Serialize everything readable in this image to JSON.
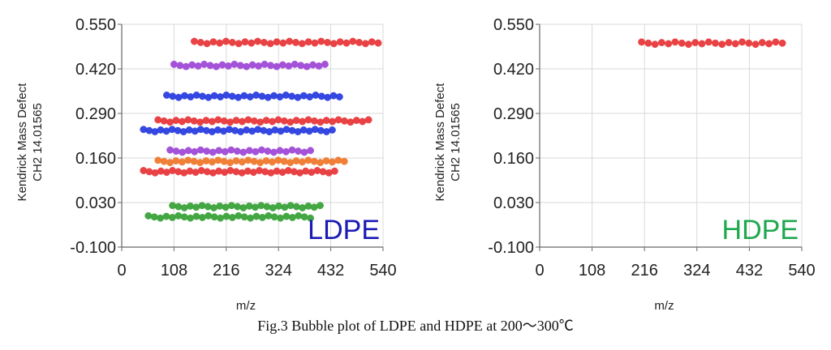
{
  "figure_caption": "Fig.3 Bubble plot of LDPE and HDPE at 200～300℃",
  "colors": {
    "red": "#e8383b",
    "purple": "#a04ad8",
    "blue": "#2b3fe0",
    "orange": "#f07a2e",
    "green": "#3aa33a",
    "ldpe_label": "#1a1ab5",
    "hdpe_label": "#1fa84f",
    "grid": "#d9d9d9",
    "axis": "#666666"
  },
  "chart_data": [
    {
      "type": "scatter",
      "title": "",
      "panel_label": "LDPE",
      "panel_label_color": "ldpe_label",
      "xlabel": "m/z",
      "ylabel_line1": "Kendrick Mass Defect",
      "ylabel_line2": "CH2 14.01565",
      "xlim": [
        0,
        540
      ],
      "ylim": [
        -0.1,
        0.55
      ],
      "xticks": [
        0,
        108,
        216,
        324,
        432,
        540
      ],
      "yticks": [
        "-0.100",
        "0.030",
        "0.160",
        "0.290",
        "0.420",
        "0.550"
      ],
      "ytick_values": [
        -0.1,
        0.03,
        0.16,
        0.29,
        0.42,
        0.55
      ],
      "grid": true,
      "series": [
        {
          "name": "red 0.50",
          "color": "red",
          "y": 0.497,
          "x_start": 150,
          "x_end": 530,
          "count": 30
        },
        {
          "name": "purple 0.43",
          "color": "purple",
          "y": 0.43,
          "x_start": 108,
          "x_end": 420,
          "count": 26
        },
        {
          "name": "blue 0.34",
          "color": "blue",
          "y": 0.34,
          "x_start": 93,
          "x_end": 450,
          "count": 30
        },
        {
          "name": "red 0.27",
          "color": "red",
          "y": 0.268,
          "x_start": 75,
          "x_end": 510,
          "count": 36
        },
        {
          "name": "blue 0.24",
          "color": "blue",
          "y": 0.24,
          "x_start": 45,
          "x_end": 435,
          "count": 34
        },
        {
          "name": "purple 0.18",
          "color": "purple",
          "y": 0.18,
          "x_start": 100,
          "x_end": 390,
          "count": 24
        },
        {
          "name": "orange 0.15",
          "color": "orange",
          "y": 0.15,
          "x_start": 75,
          "x_end": 460,
          "count": 32
        },
        {
          "name": "red 0.12",
          "color": "red",
          "y": 0.12,
          "x_start": 45,
          "x_end": 440,
          "count": 34
        },
        {
          "name": "green 0.02",
          "color": "green",
          "y": 0.018,
          "x_start": 105,
          "x_end": 410,
          "count": 26
        },
        {
          "name": "green -0.01",
          "color": "green",
          "y": -0.012,
          "x_start": 55,
          "x_end": 390,
          "count": 28
        }
      ]
    },
    {
      "type": "scatter",
      "title": "",
      "panel_label": "HDPE",
      "panel_label_color": "hdpe_label",
      "xlabel": "m/z",
      "ylabel_line1": "Kendrick Mass Defect",
      "ylabel_line2": "CH2 14.01565",
      "xlim": [
        0,
        540
      ],
      "ylim": [
        -0.1,
        0.55
      ],
      "xticks": [
        0,
        108,
        216,
        324,
        432,
        540
      ],
      "yticks": [
        "-0.100",
        "0.030",
        "0.160",
        "0.290",
        "0.420",
        "0.550"
      ],
      "ytick_values": [
        -0.1,
        0.03,
        0.16,
        0.29,
        0.42,
        0.55
      ],
      "grid": true,
      "series": [
        {
          "name": "red 0.50",
          "color": "red",
          "y": 0.495,
          "x_start": 210,
          "x_end": 500,
          "count": 22
        }
      ]
    }
  ]
}
